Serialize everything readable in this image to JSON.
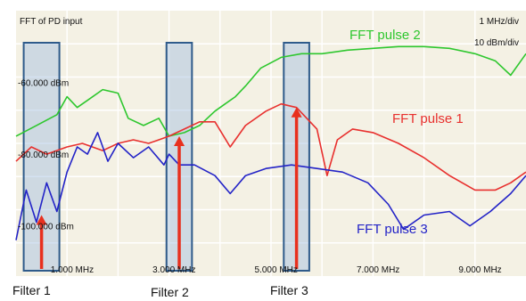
{
  "chart_data": {
    "type": "line",
    "title": "FFT of PD input",
    "scale": {
      "x_per_div": "1 MHz/div",
      "y_per_div": "10 dBm/div"
    },
    "x_ticks": [
      "1.000 MHz",
      "3.000 MHz",
      "5.000 MHz",
      "7.000 MHz",
      "9.000 MHz"
    ],
    "y_ticks": [
      "-60.000 dBm",
      "-80.000 dBm",
      "-100.000 dBm"
    ],
    "xlim": [
      0,
      10.0
    ],
    "ylim": [
      -114,
      -40
    ],
    "grid": true,
    "series": [
      {
        "name": "FFT pulse 2",
        "color": "#2ec72e",
        "points": [
          [
            0.0,
            -75
          ],
          [
            0.4,
            -72
          ],
          [
            0.8,
            -69
          ],
          [
            1.0,
            -64
          ],
          [
            1.2,
            -67
          ],
          [
            1.4,
            -65
          ],
          [
            1.7,
            -62
          ],
          [
            2.0,
            -63
          ],
          [
            2.2,
            -70
          ],
          [
            2.5,
            -72
          ],
          [
            2.8,
            -70
          ],
          [
            3.0,
            -75
          ],
          [
            3.3,
            -74
          ],
          [
            3.6,
            -72
          ],
          [
            3.9,
            -68
          ],
          [
            4.1,
            -66
          ],
          [
            4.3,
            -64
          ],
          [
            4.5,
            -61
          ],
          [
            4.8,
            -56
          ],
          [
            5.2,
            -53
          ],
          [
            5.6,
            -52
          ],
          [
            6.0,
            -52
          ],
          [
            6.5,
            -51
          ],
          [
            7.0,
            -50.5
          ],
          [
            7.5,
            -50
          ],
          [
            8.0,
            -50
          ],
          [
            8.5,
            -50.5
          ],
          [
            9.0,
            -52
          ],
          [
            9.4,
            -54
          ],
          [
            9.7,
            -58
          ],
          [
            10.0,
            -52
          ]
        ]
      },
      {
        "name": "FFT pulse 1",
        "color": "#e8302e",
        "points": [
          [
            0.0,
            -82
          ],
          [
            0.3,
            -78
          ],
          [
            0.6,
            -80
          ],
          [
            1.0,
            -78
          ],
          [
            1.3,
            -77
          ],
          [
            1.7,
            -79
          ],
          [
            2.0,
            -77
          ],
          [
            2.3,
            -76
          ],
          [
            2.6,
            -77
          ],
          [
            2.8,
            -76
          ],
          [
            3.0,
            -75
          ],
          [
            3.3,
            -73
          ],
          [
            3.6,
            -71
          ],
          [
            3.9,
            -71
          ],
          [
            4.2,
            -78
          ],
          [
            4.5,
            -72
          ],
          [
            4.9,
            -68
          ],
          [
            5.2,
            -66
          ],
          [
            5.5,
            -67
          ],
          [
            5.9,
            -73
          ],
          [
            6.1,
            -86
          ],
          [
            6.3,
            -76
          ],
          [
            6.6,
            -73
          ],
          [
            7.0,
            -74
          ],
          [
            7.5,
            -77
          ],
          [
            8.0,
            -81
          ],
          [
            8.5,
            -86
          ],
          [
            9.0,
            -90
          ],
          [
            9.4,
            -90
          ],
          [
            9.7,
            -88
          ],
          [
            10.0,
            -85
          ]
        ]
      },
      {
        "name": "FFT pulse 3",
        "color": "#2323c7",
        "points": [
          [
            0.0,
            -104
          ],
          [
            0.2,
            -90
          ],
          [
            0.4,
            -99
          ],
          [
            0.6,
            -88
          ],
          [
            0.8,
            -96
          ],
          [
            1.0,
            -85
          ],
          [
            1.2,
            -78
          ],
          [
            1.4,
            -80
          ],
          [
            1.6,
            -74
          ],
          [
            1.8,
            -82
          ],
          [
            2.0,
            -77
          ],
          [
            2.3,
            -81
          ],
          [
            2.6,
            -78
          ],
          [
            2.9,
            -83
          ],
          [
            3.0,
            -80
          ],
          [
            3.2,
            -83
          ],
          [
            3.5,
            -83
          ],
          [
            3.9,
            -86
          ],
          [
            4.2,
            -91
          ],
          [
            4.5,
            -86
          ],
          [
            4.9,
            -84
          ],
          [
            5.4,
            -83
          ],
          [
            5.9,
            -84
          ],
          [
            6.4,
            -85
          ],
          [
            6.9,
            -88
          ],
          [
            7.3,
            -94
          ],
          [
            7.6,
            -101
          ],
          [
            8.0,
            -97
          ],
          [
            8.5,
            -96
          ],
          [
            8.9,
            -100
          ],
          [
            9.3,
            -96
          ],
          [
            9.7,
            -91
          ],
          [
            10.0,
            -86
          ]
        ]
      }
    ],
    "series_labels": [
      "FFT pulse 2",
      "FFT pulse 1",
      "FFT pulse 3"
    ],
    "filters": [
      {
        "label": "Filter 1",
        "x_range": [
          0.15,
          0.85
        ],
        "arrow_x": 0.5
      },
      {
        "label": "Filter 2",
        "x_range": [
          2.95,
          3.45
        ],
        "arrow_x": 3.2
      },
      {
        "label": "Filter 3",
        "x_range": [
          5.25,
          5.75
        ],
        "arrow_x": 5.5
      }
    ],
    "colors": {
      "filter_box": "#9fbde0",
      "arrow": "#e8301e",
      "background": "#f4f1e4"
    }
  }
}
